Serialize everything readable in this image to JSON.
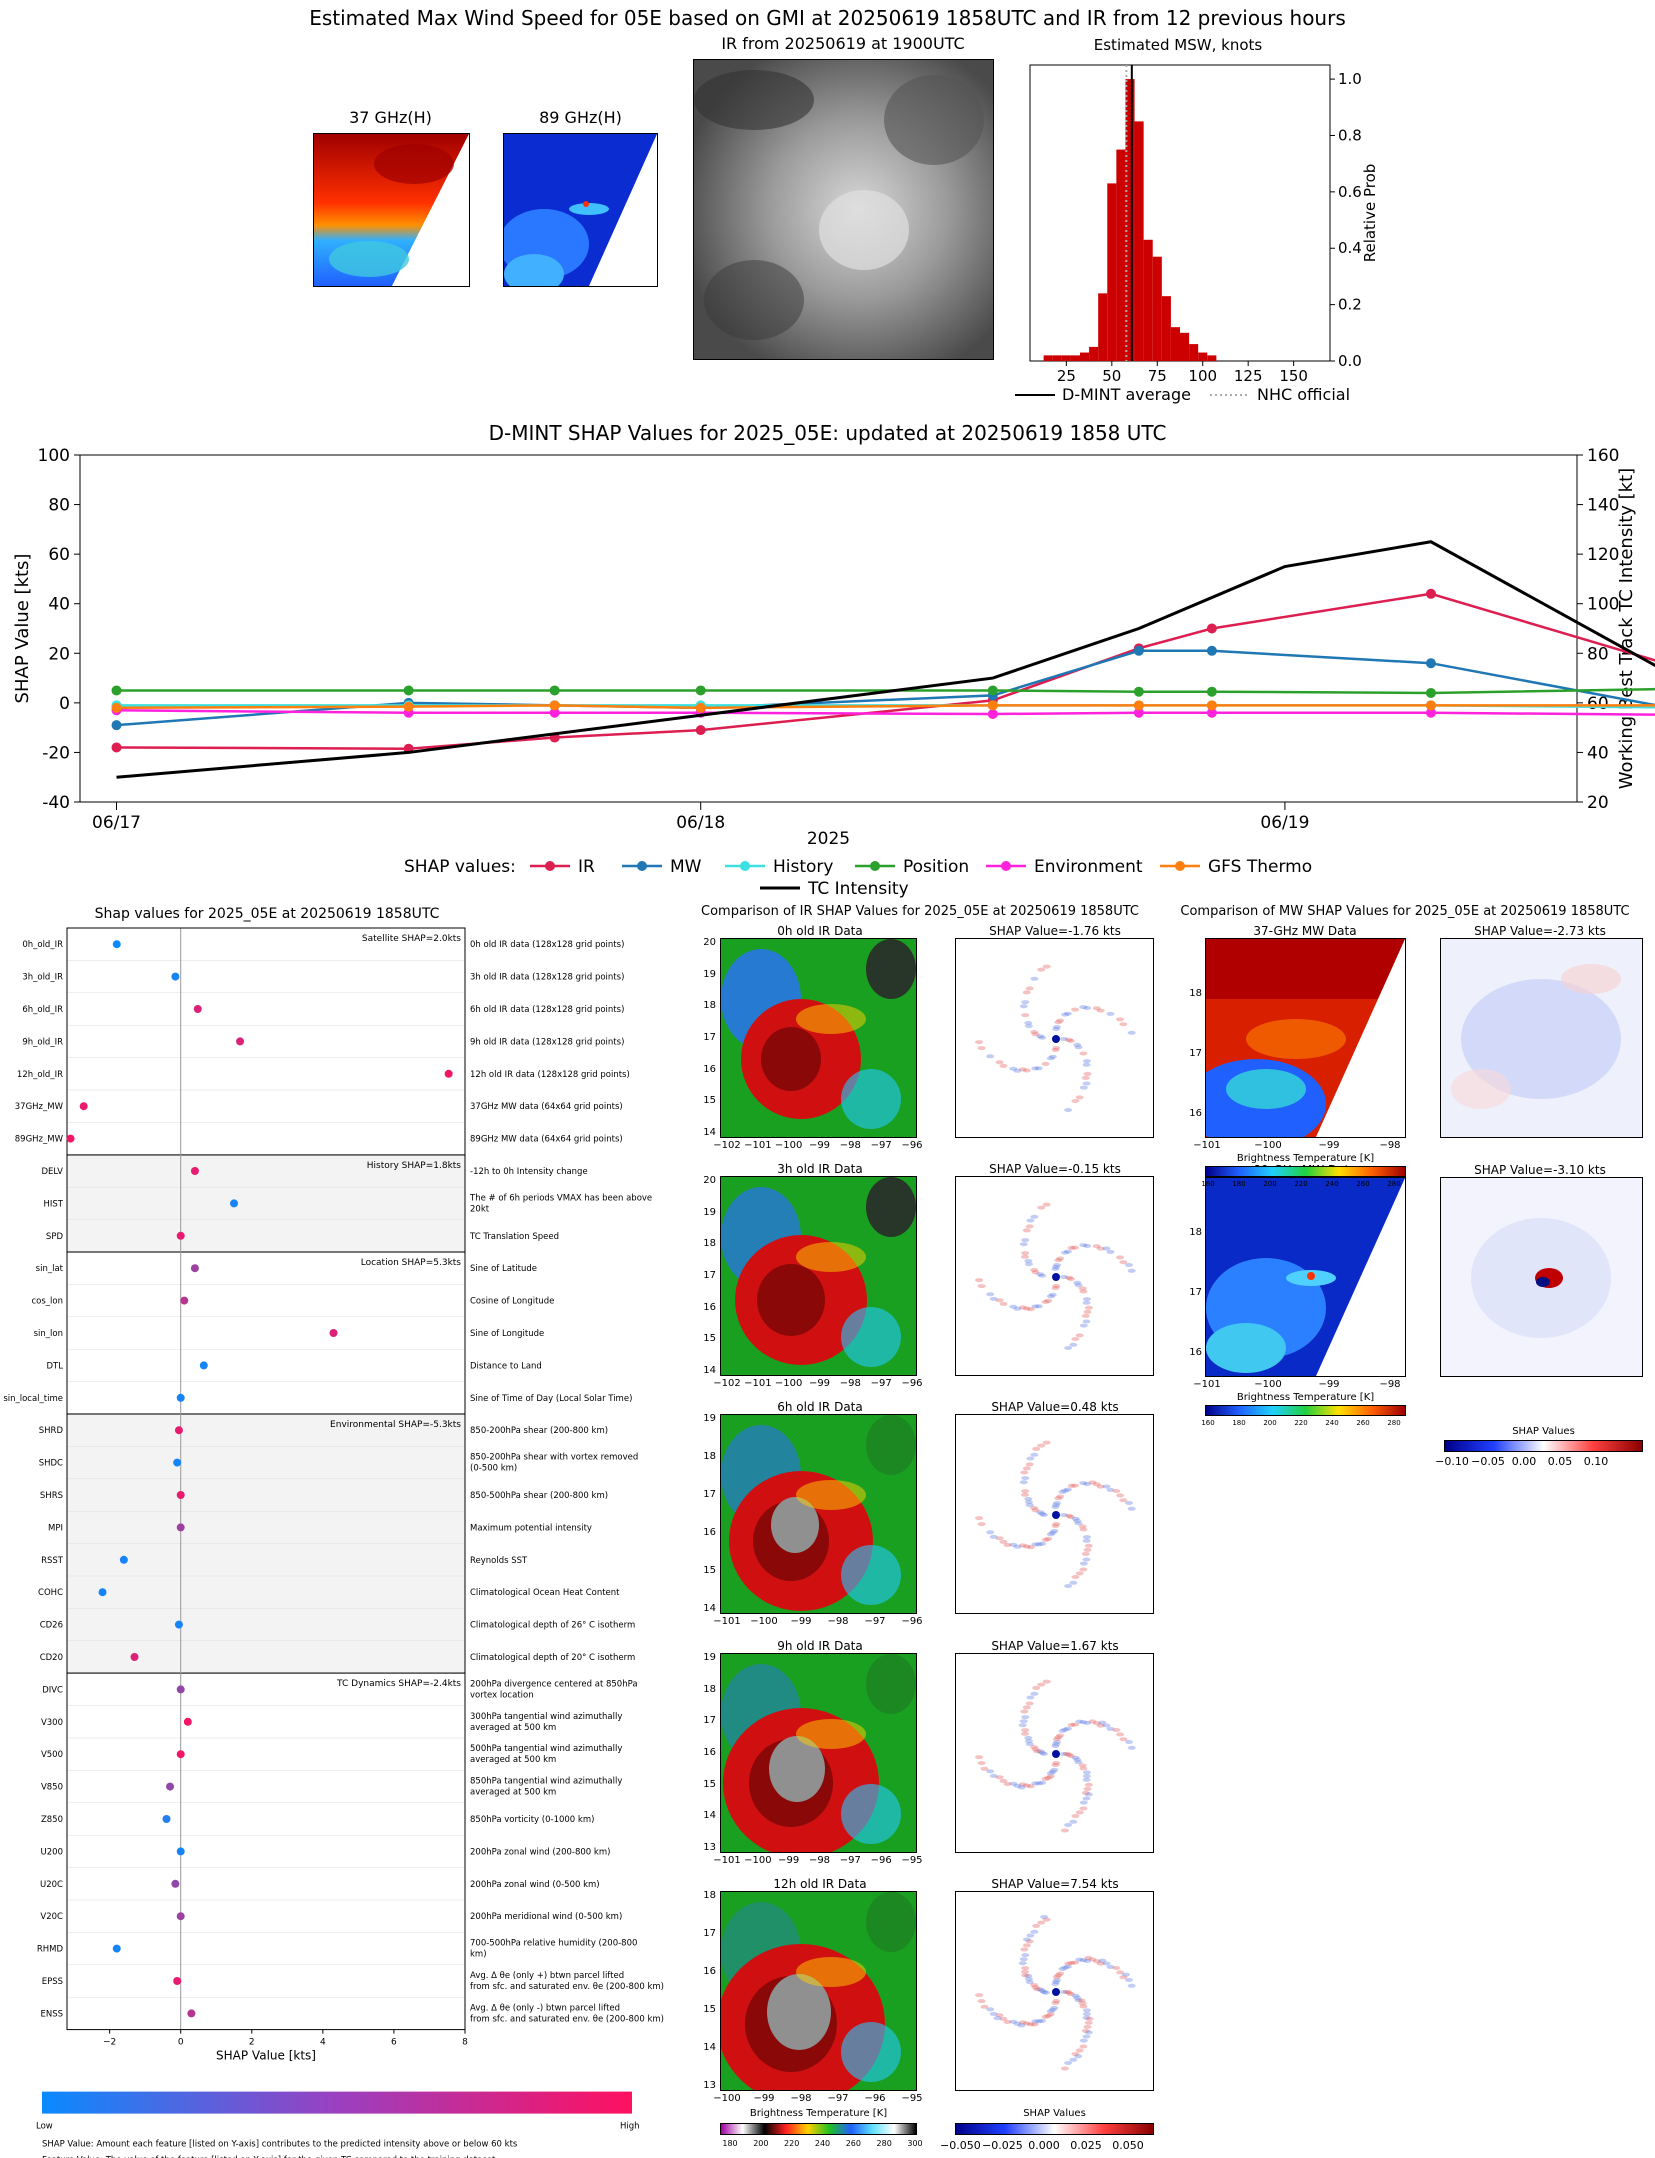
{
  "page_title": "Estimated Max Wind Speed for 05E based on GMI at 20250619 1858UTC and IR from 12 previous hours",
  "top": {
    "mw37_title": "37 GHz(H)",
    "mw89_title": "89 GHz(H)",
    "ir_title": "IR from 20250619 at 1900UTC",
    "hist_title": "Estimated MSW, knots",
    "hist_ylabel": "Relative Prob",
    "legend_dmint": "D-MINT average",
    "legend_nhc": "NHC official"
  },
  "shap_time": {
    "title": "D-MINT SHAP Values for 2025_05E: updated at 20250619 1858 UTC",
    "ylabel_left": "SHAP Value [kts]",
    "ylabel_right": "Working Best Track TC Intensity [kt]",
    "xlabel": "2025",
    "legend_prefix": "SHAP values:",
    "legend_tc": "TC Intensity"
  },
  "shap_summary": {
    "title": "Shap values for 2025_05E at 20250619 1858UTC",
    "xlabel": "SHAP Value [kts]",
    "colorbar_low": "Low",
    "colorbar_high": "High",
    "note1": "SHAP Value: Amount each feature [listed on Y-axis] contributes to the predicted intensity above or below 60 kts",
    "note2": "Feature Value: The value of the feature [listed on Y-axis] for the given TC compared to the training dataset",
    "group_labels": [
      "Satellite SHAP=2.0kts",
      "History SHAP=1.8kts",
      "Location SHAP=5.3kts",
      "Environmental SHAP=-5.3kts",
      "TC Dynamics SHAP=-2.4kts"
    ]
  },
  "ir_compare": {
    "title": "Comparison of IR SHAP Values for 2025_05E at 20250619 1858UTC",
    "panels": [
      {
        "label": "0h old IR Data",
        "shap": "SHAP Value=-1.76 kts"
      },
      {
        "label": "3h old IR Data",
        "shap": "SHAP Value=-0.15 kts"
      },
      {
        "label": "6h old IR Data",
        "shap": "SHAP Value=0.48 kts"
      },
      {
        "label": "9h old IR Data",
        "shap": "SHAP Value=1.67 kts"
      },
      {
        "label": "12h old IR Data",
        "shap": "SHAP Value=7.54 kts"
      }
    ],
    "bt_label": "Brightness Temperature [K]",
    "bt_ticks": [
      "180",
      "200",
      "220",
      "240",
      "260",
      "280",
      "300"
    ],
    "sv_label": "SHAP Values",
    "sv_ticks": [
      "−0.050",
      "−0.025",
      "0.000",
      "0.025",
      "0.050"
    ]
  },
  "mw_compare": {
    "title": "Comparison of MW SHAP Values for 2025_05E at 20250619 1858UTC",
    "p37_label": "37-GHz MW Data",
    "p37_shap": "SHAP Value=-2.73 kts",
    "p89_label": "89-GHz MW Data",
    "p89_shap": "SHAP Value=-3.10 kts",
    "bt_label": "Brightness Temperature [K]",
    "bt_ticks": [
      "160",
      "180",
      "200",
      "220",
      "240",
      "260",
      "280"
    ],
    "sv_label": "SHAP Values",
    "sv_ticks": [
      "−0.10",
      "−0.05",
      "0.00",
      "0.05",
      "0.10"
    ],
    "x_ticks": [
      "−101",
      "−100",
      "−99",
      "−98"
    ],
    "y_ticks": [
      "18",
      "17",
      "16"
    ]
  },
  "chart_data": [
    {
      "type": "bar",
      "title": "Estimated MSW, knots",
      "ylabel": "Relative Prob",
      "xlim": [
        5,
        170
      ],
      "ylim": [
        0,
        1.05
      ],
      "x_ticks": [
        25,
        50,
        75,
        100,
        125,
        150
      ],
      "y_ticks": [
        0.0,
        0.2,
        0.4,
        0.6,
        0.8,
        1.0
      ],
      "bin_width": 5,
      "bins": [
        15,
        20,
        25,
        30,
        35,
        40,
        45,
        50,
        55,
        60,
        65,
        70,
        75,
        80,
        85,
        90,
        95,
        100,
        105
      ],
      "values": [
        0.02,
        0.02,
        0.02,
        0.02,
        0.03,
        0.05,
        0.24,
        0.63,
        0.75,
        1.0,
        0.85,
        0.43,
        0.37,
        0.23,
        0.12,
        0.1,
        0.06,
        0.03,
        0.02
      ],
      "dmint_average": 61,
      "nhc_official": 58
    },
    {
      "type": "line",
      "title": "D-MINT SHAP Values for 2025_05E: updated at 20250619 1858 UTC",
      "ylabel": "SHAP Value [kts]",
      "y2label": "Working Best Track TC Intensity [kt]",
      "xlabel": "2025",
      "x_ticks": [
        "06/17",
        "06/18",
        "06/19"
      ],
      "ylim": [
        -40,
        100
      ],
      "y2lim": [
        20,
        160
      ],
      "x": [
        "06/17 00",
        "06/17 12",
        "06/17 18",
        "06/18 00",
        "06/18 06",
        "06/18 12",
        "06/18 18",
        "06/18 21",
        "06/19 06",
        "06/19 18"
      ],
      "series": [
        {
          "name": "IR",
          "color": "#dc1e50",
          "values": [
            -18,
            -18.5,
            -14,
            -11,
            null,
            1,
            22,
            30,
            44,
            9
          ]
        },
        {
          "name": "MW",
          "color": "#1f77b4",
          "values": [
            -9,
            0,
            -1,
            -2,
            null,
            3,
            21,
            21,
            16,
            -6
          ]
        },
        {
          "name": "History",
          "color": "#3ce0e0",
          "values": [
            -1,
            -1,
            -1,
            -1,
            null,
            -1,
            -1,
            -1,
            -1,
            -2
          ]
        },
        {
          "name": "Position",
          "color": "#2ca02c",
          "values": [
            5,
            5,
            5,
            5,
            null,
            5,
            4.5,
            4.5,
            4,
            6
          ]
        },
        {
          "name": "Environment",
          "color": "#ff22dd",
          "values": [
            -3,
            -4,
            -4,
            -4,
            null,
            -4.5,
            -4,
            -4,
            -4,
            -5
          ]
        },
        {
          "name": "GFS Thermo",
          "color": "#ff7f0e",
          "values": [
            -2,
            -1.5,
            -1,
            -2,
            null,
            -1,
            -1,
            -1,
            -1,
            -1
          ]
        }
      ],
      "tc_intensity": {
        "name": "TC Intensity",
        "x": [
          "06/17 00",
          "06/17 12",
          "06/18 00",
          "06/18 12",
          "06/18 18",
          "06/19 00",
          "06/19 06",
          "06/19 18"
        ],
        "values": [
          30,
          40,
          55,
          70,
          90,
          115,
          125,
          60
        ]
      }
    },
    {
      "type": "scatter",
      "title": "Shap values for 2025_05E at 20250619 1858UTC",
      "xlabel": "SHAP Value [kts]",
      "xlim": [
        -3.2,
        8
      ],
      "x_ticks": [
        -2,
        0,
        2,
        4,
        6,
        8
      ],
      "features": [
        {
          "name": "0h_old_IR",
          "desc": "0h old IR data (128x128 grid points)",
          "shap": -1.8,
          "value": 0.0
        },
        {
          "name": "3h_old_IR",
          "desc": "3h old IR data (128x128 grid points)",
          "shap": -0.15,
          "value": 0.05
        },
        {
          "name": "6h_old_IR",
          "desc": "6h old IR data (128x128 grid points)",
          "shap": 0.48,
          "value": 0.85
        },
        {
          "name": "9h_old_IR",
          "desc": "9h old IR data (128x128 grid points)",
          "shap": 1.67,
          "value": 0.85
        },
        {
          "name": "12h_old_IR",
          "desc": "12h old IR data (128x128 grid points)",
          "shap": 7.54,
          "value": 0.95
        },
        {
          "name": "37GHz_MW",
          "desc": "37GHz MW data (64x64 grid points)",
          "shap": -2.73,
          "value": 0.9
        },
        {
          "name": "89GHz_MW",
          "desc": "89GHz MW data (64x64 grid points)",
          "shap": -3.1,
          "value": 0.95
        },
        {
          "name": "DELV",
          "desc": "-12h to 0h Intensity change",
          "shap": 0.4,
          "value": 0.9
        },
        {
          "name": "HIST",
          "desc": "The # of 6h periods VMAX has been above 20kt",
          "shap": 1.5,
          "value": 0.05
        },
        {
          "name": "SPD",
          "desc": "TC Translation Speed",
          "shap": 0.0,
          "value": 0.9
        },
        {
          "name": "sin_lat",
          "desc": "Sine of Latitude",
          "shap": 0.4,
          "value": 0.6
        },
        {
          "name": "cos_lon",
          "desc": "Cosine of Longitude",
          "shap": 0.1,
          "value": 0.7
        },
        {
          "name": "sin_lon",
          "desc": "Sine of Longitude",
          "shap": 4.3,
          "value": 0.85
        },
        {
          "name": "DTL",
          "desc": "Distance to Land",
          "shap": 0.65,
          "value": 0.05
        },
        {
          "name": "sin_local_time",
          "desc": "Sine of Time of Day (Local Solar Time)",
          "shap": 0.0,
          "value": 0.05
        },
        {
          "name": "SHRD",
          "desc": "850-200hPa shear (200-800 km)",
          "shap": -0.05,
          "value": 0.9
        },
        {
          "name": "SHDC",
          "desc": "850-200hPa shear with vortex removed (0-500 km)",
          "shap": -0.1,
          "value": 0.05
        },
        {
          "name": "SHRS",
          "desc": "850-500hPa shear (200-800 km)",
          "shap": 0.0,
          "value": 0.9
        },
        {
          "name": "MPI",
          "desc": "Maximum potential intensity",
          "shap": 0.0,
          "value": 0.6
        },
        {
          "name": "RSST",
          "desc": "Reynolds SST",
          "shap": -1.6,
          "value": 0.05
        },
        {
          "name": "COHC",
          "desc": "Climatological Ocean Heat Content",
          "shap": -2.2,
          "value": 0.05
        },
        {
          "name": "CD26",
          "desc": "Climatological depth of 26° C isotherm",
          "shap": -0.05,
          "value": 0.05
        },
        {
          "name": "CD20",
          "desc": "Climatological depth of 20° C isotherm",
          "shap": -1.3,
          "value": 0.85
        },
        {
          "name": "DIVC",
          "desc": "200hPa divergence centered at 850hPa vortex location",
          "shap": 0.0,
          "value": 0.55
        },
        {
          "name": "V300",
          "desc": "300hPa tangential wind azimuthally averaged at 500 km",
          "shap": 0.2,
          "value": 0.95
        },
        {
          "name": "V500",
          "desc": "500hPa tangential wind azimuthally averaged at 500 km",
          "shap": 0.0,
          "value": 0.95
        },
        {
          "name": "V850",
          "desc": "850hPa tangential wind azimuthally averaged at 500 km",
          "shap": -0.3,
          "value": 0.55
        },
        {
          "name": "Z850",
          "desc": "850hPa vorticity (0-1000 km)",
          "shap": -0.4,
          "value": 0.1
        },
        {
          "name": "U200",
          "desc": "200hPa zonal wind (200-800 km)",
          "shap": 0.0,
          "value": 0.05
        },
        {
          "name": "U20C",
          "desc": "200hPa zonal wind (0-500 km)",
          "shap": -0.15,
          "value": 0.55
        },
        {
          "name": "V20C",
          "desc": "200hPa meridional wind (0-500 km)",
          "shap": 0.0,
          "value": 0.6
        },
        {
          "name": "RHMD",
          "desc": "700-500hPa relative humidity (200-800 km)",
          "shap": -1.8,
          "value": 0.05
        },
        {
          "name": "EPSS",
          "desc": "Avg. Δ θe (only +) btwn parcel lifted from sfc. and saturated env. θe (200-800 km)",
          "shap": -0.1,
          "value": 0.9
        },
        {
          "name": "ENSS",
          "desc": "Avg. Δ θe (only -) btwn parcel lifted from sfc. and saturated env. θe (200-800 km)",
          "shap": 0.3,
          "value": 0.7
        }
      ]
    }
  ]
}
